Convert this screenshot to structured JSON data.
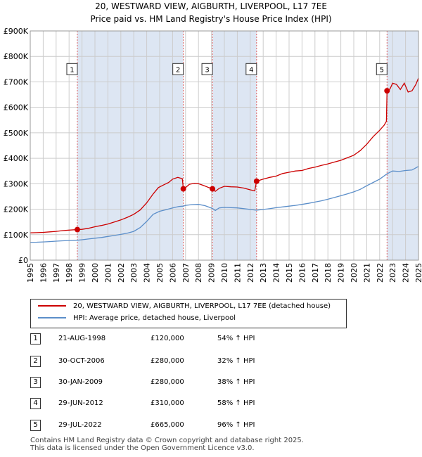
{
  "header": {
    "title_line1": "20, WESTWARD VIEW, AIGBURTH, LIVERPOOL, L17 7EE",
    "title_line2": "Price paid vs. HM Land Registry's House Price Index (HPI)"
  },
  "colors": {
    "price_line": "#cc0000",
    "hpi_line": "#5b8ec9",
    "shade": "#dde6f3",
    "marker_line": "#e06060",
    "grid": "#cccccc"
  },
  "chart_data": {
    "type": "line",
    "xlim": [
      1995,
      2025
    ],
    "ylim": [
      0,
      900000
    ],
    "x_ticks": [
      1995,
      1996,
      1997,
      1998,
      1999,
      2000,
      2001,
      2002,
      2003,
      2004,
      2005,
      2006,
      2007,
      2008,
      2009,
      2010,
      2011,
      2012,
      2013,
      2014,
      2015,
      2016,
      2017,
      2018,
      2019,
      2020,
      2021,
      2022,
      2023,
      2024,
      2025
    ],
    "y_ticks": [
      0,
      100000,
      200000,
      300000,
      400000,
      500000,
      600000,
      700000,
      800000,
      900000
    ],
    "y_tick_labels": [
      "£0",
      "£100K",
      "£200K",
      "£300K",
      "£400K",
      "£500K",
      "£600K",
      "£700K",
      "£800K",
      "£900K"
    ],
    "shaded_ranges": [
      [
        1998.64,
        2006.83
      ],
      [
        2009.08,
        2012.49
      ],
      [
        2022.57,
        2025.0
      ]
    ],
    "hatched_after": 2025.0,
    "series": [
      {
        "name": "20, WESTWARD VIEW, AIGBURTH, LIVERPOOL, L17 7EE (detached house)",
        "color": "#cc0000",
        "points": [
          [
            1995.0,
            107000
          ],
          [
            1995.5,
            108000
          ],
          [
            1996.0,
            109000
          ],
          [
            1996.5,
            111000
          ],
          [
            1997.0,
            113000
          ],
          [
            1997.5,
            116000
          ],
          [
            1998.0,
            118000
          ],
          [
            1998.64,
            120000
          ],
          [
            1999.0,
            121000
          ],
          [
            1999.5,
            125000
          ],
          [
            2000.0,
            131000
          ],
          [
            2000.5,
            136000
          ],
          [
            2001.0,
            142000
          ],
          [
            2001.5,
            150000
          ],
          [
            2002.0,
            158000
          ],
          [
            2002.5,
            168000
          ],
          [
            2003.0,
            180000
          ],
          [
            2003.5,
            197000
          ],
          [
            2004.0,
            225000
          ],
          [
            2004.5,
            260000
          ],
          [
            2004.9,
            285000
          ],
          [
            2005.3,
            295000
          ],
          [
            2005.7,
            305000
          ],
          [
            2006.0,
            318000
          ],
          [
            2006.4,
            325000
          ],
          [
            2006.75,
            320000
          ],
          [
            2006.83,
            280000
          ],
          [
            2007.0,
            285000
          ],
          [
            2007.3,
            298000
          ],
          [
            2007.7,
            302000
          ],
          [
            2008.0,
            300000
          ],
          [
            2008.4,
            293000
          ],
          [
            2008.8,
            285000
          ],
          [
            2009.08,
            280000
          ],
          [
            2009.3,
            270000
          ],
          [
            2009.6,
            282000
          ],
          [
            2010.0,
            290000
          ],
          [
            2010.5,
            288000
          ],
          [
            2011.0,
            287000
          ],
          [
            2011.5,
            283000
          ],
          [
            2012.0,
            276000
          ],
          [
            2012.35,
            272000
          ],
          [
            2012.49,
            310000
          ],
          [
            2013.0,
            318000
          ],
          [
            2013.5,
            325000
          ],
          [
            2014.0,
            330000
          ],
          [
            2014.5,
            340000
          ],
          [
            2015.0,
            345000
          ],
          [
            2015.5,
            350000
          ],
          [
            2016.0,
            352000
          ],
          [
            2016.5,
            360000
          ],
          [
            2017.0,
            365000
          ],
          [
            2017.5,
            372000
          ],
          [
            2018.0,
            378000
          ],
          [
            2018.5,
            385000
          ],
          [
            2019.0,
            392000
          ],
          [
            2019.5,
            402000
          ],
          [
            2020.0,
            412000
          ],
          [
            2020.5,
            430000
          ],
          [
            2021.0,
            455000
          ],
          [
            2021.5,
            485000
          ],
          [
            2022.0,
            510000
          ],
          [
            2022.35,
            530000
          ],
          [
            2022.52,
            545000
          ],
          [
            2022.57,
            665000
          ],
          [
            2022.8,
            672000
          ],
          [
            2023.0,
            695000
          ],
          [
            2023.3,
            690000
          ],
          [
            2023.6,
            670000
          ],
          [
            2023.9,
            695000
          ],
          [
            2024.2,
            660000
          ],
          [
            2024.5,
            665000
          ],
          [
            2024.8,
            690000
          ],
          [
            2025.0,
            715000
          ]
        ]
      },
      {
        "name": "HPI: Average price, detached house, Liverpool",
        "color": "#5b8ec9",
        "points": [
          [
            1995.0,
            70000
          ],
          [
            1995.5,
            70500
          ],
          [
            1996.0,
            71500
          ],
          [
            1996.5,
            73000
          ],
          [
            1997.0,
            74500
          ],
          [
            1997.5,
            76000
          ],
          [
            1998.0,
            77000
          ],
          [
            1998.64,
            78000
          ],
          [
            1999.0,
            80000
          ],
          [
            1999.5,
            83000
          ],
          [
            2000.0,
            86000
          ],
          [
            2000.5,
            89000
          ],
          [
            2001.0,
            93000
          ],
          [
            2001.5,
            97000
          ],
          [
            2002.0,
            101000
          ],
          [
            2002.5,
            106000
          ],
          [
            2003.0,
            113000
          ],
          [
            2003.5,
            128000
          ],
          [
            2004.0,
            152000
          ],
          [
            2004.5,
            180000
          ],
          [
            2005.0,
            192000
          ],
          [
            2005.5,
            198000
          ],
          [
            2006.0,
            205000
          ],
          [
            2006.5,
            211000
          ],
          [
            2006.83,
            212000
          ],
          [
            2007.0,
            215000
          ],
          [
            2007.5,
            218000
          ],
          [
            2008.0,
            219000
          ],
          [
            2008.5,
            214000
          ],
          [
            2009.08,
            203000
          ],
          [
            2009.3,
            195000
          ],
          [
            2009.6,
            205000
          ],
          [
            2010.0,
            207000
          ],
          [
            2010.5,
            206000
          ],
          [
            2011.0,
            205000
          ],
          [
            2011.5,
            202000
          ],
          [
            2012.0,
            199000
          ],
          [
            2012.49,
            196000
          ],
          [
            2013.0,
            199000
          ],
          [
            2013.5,
            202000
          ],
          [
            2014.0,
            206000
          ],
          [
            2014.5,
            209000
          ],
          [
            2015.0,
            212000
          ],
          [
            2015.5,
            215000
          ],
          [
            2016.0,
            219000
          ],
          [
            2016.5,
            223000
          ],
          [
            2017.0,
            228000
          ],
          [
            2017.5,
            233000
          ],
          [
            2018.0,
            239000
          ],
          [
            2018.5,
            246000
          ],
          [
            2019.0,
            253000
          ],
          [
            2019.5,
            260000
          ],
          [
            2020.0,
            268000
          ],
          [
            2020.5,
            278000
          ],
          [
            2021.0,
            292000
          ],
          [
            2021.5,
            305000
          ],
          [
            2022.0,
            318000
          ],
          [
            2022.57,
            339000
          ],
          [
            2023.0,
            350000
          ],
          [
            2023.5,
            348000
          ],
          [
            2024.0,
            352000
          ],
          [
            2024.5,
            354000
          ],
          [
            2025.0,
            368000
          ]
        ]
      }
    ],
    "sale_markers": [
      {
        "label": "1",
        "x": 1998.64,
        "y": 120000
      },
      {
        "label": "2",
        "x": 2006.83,
        "y": 280000
      },
      {
        "label": "3",
        "x": 2009.08,
        "y": 280000
      },
      {
        "label": "4",
        "x": 2012.49,
        "y": 310000
      },
      {
        "label": "5",
        "x": 2022.57,
        "y": 665000
      }
    ],
    "marker_box_value": 750000
  },
  "legend": {
    "price_label": "20, WESTWARD VIEW, AIGBURTH, LIVERPOOL, L17 7EE (detached house)",
    "hpi_label": "HPI: Average price, detached house, Liverpool"
  },
  "sales": [
    {
      "num": "1",
      "date": "21-AUG-1998",
      "price": "£120,000",
      "hpi": "54% ↑ HPI"
    },
    {
      "num": "2",
      "date": "30-OCT-2006",
      "price": "£280,000",
      "hpi": "32% ↑ HPI"
    },
    {
      "num": "3",
      "date": "30-JAN-2009",
      "price": "£280,000",
      "hpi": "38% ↑ HPI"
    },
    {
      "num": "4",
      "date": "29-JUN-2012",
      "price": "£310,000",
      "hpi": "58% ↑ HPI"
    },
    {
      "num": "5",
      "date": "29-JUL-2022",
      "price": "£665,000",
      "hpi": "96% ↑ HPI"
    }
  ],
  "footer": {
    "line1": "Contains HM Land Registry data © Crown copyright and database right 2025.",
    "line2": "This data is licensed under the Open Government Licence v3.0."
  }
}
